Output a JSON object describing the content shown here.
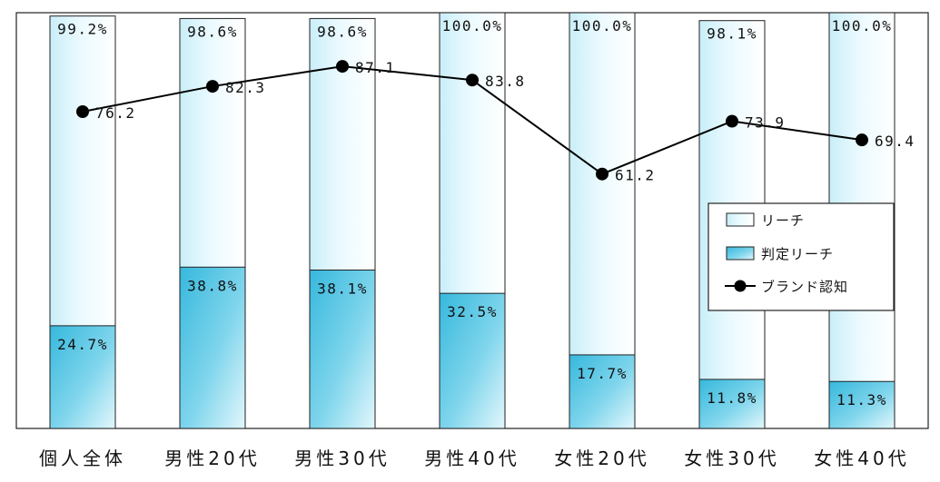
{
  "chart_data": {
    "type": "bar",
    "subtype": "overlapping bars with line overlay",
    "categories": [
      "個人全体",
      "男性20代",
      "男性30代",
      "男性40代",
      "女性20代",
      "女性30代",
      "女性40代"
    ],
    "ylim": [
      0,
      100
    ],
    "grid": false,
    "legend_position": "right",
    "series": [
      {
        "name": "リーチ",
        "kind": "bar",
        "values": [
          99.2,
          98.6,
          98.6,
          100.0,
          100.0,
          98.1,
          100.0
        ],
        "labels": [
          "99.2%",
          "98.6%",
          "98.6%",
          "100.0%",
          "100.0%",
          "98.1%",
          "100.0%"
        ],
        "color": "#ffffff"
      },
      {
        "name": "判定リーチ",
        "kind": "bar",
        "values": [
          24.7,
          38.8,
          38.1,
          32.5,
          17.7,
          11.8,
          11.3
        ],
        "labels": [
          "24.7%",
          "38.8%",
          "38.1%",
          "32.5%",
          "17.7%",
          "11.8%",
          "11.3%"
        ],
        "color": "#5cc8e4"
      },
      {
        "name": "ブランド認知",
        "kind": "line",
        "values": [
          76.2,
          82.3,
          87.1,
          83.8,
          61.2,
          73.9,
          69.4
        ],
        "labels": [
          "76.2",
          "82.3",
          "87.1",
          "83.8",
          "61.2",
          "73.9",
          "69.4"
        ],
        "color": "#000000"
      }
    ]
  }
}
